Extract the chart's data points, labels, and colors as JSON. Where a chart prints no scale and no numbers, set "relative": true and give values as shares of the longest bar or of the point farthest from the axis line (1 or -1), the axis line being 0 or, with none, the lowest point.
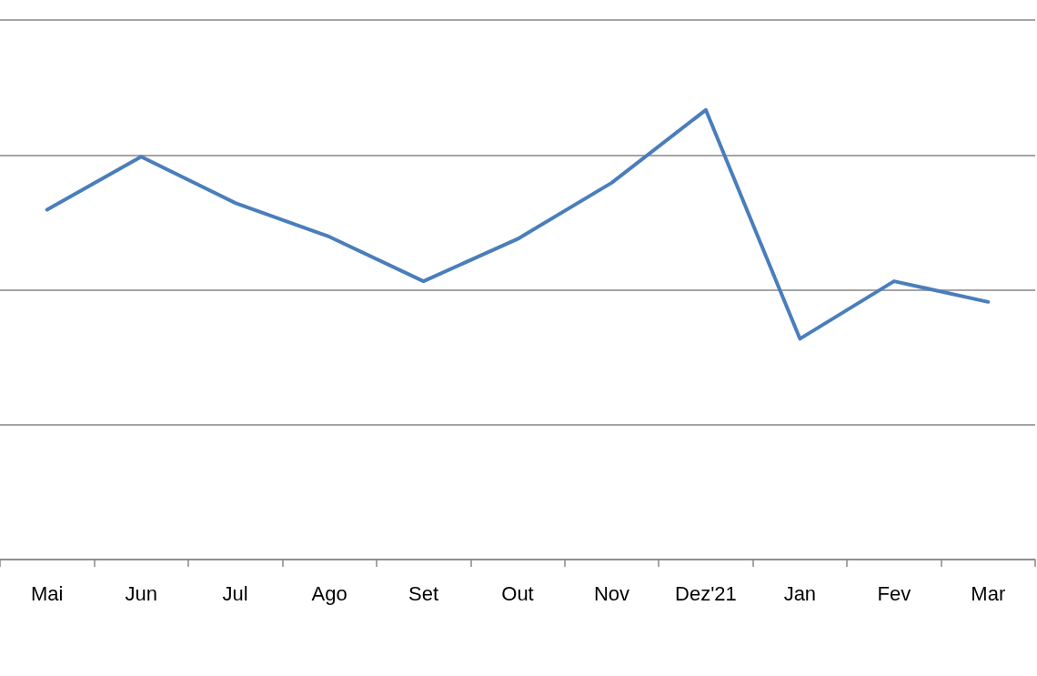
{
  "chart_data": {
    "type": "line",
    "relative": true,
    "grid": "y",
    "marker": "none",
    "line_style": "solid",
    "categories": [
      "Mai",
      "Jun",
      "Jul",
      "Ago",
      "Set",
      "Out",
      "Nov",
      "Dez'21",
      "Jan",
      "Fev",
      "Mar"
    ],
    "series": [
      {
        "color": "#4a7ebb",
        "values": [
          0.778,
          0.896,
          0.793,
          0.718,
          0.619,
          0.713,
          0.838,
          1,
          0.491,
          0.619,
          0.573
        ]
      }
    ]
  }
}
